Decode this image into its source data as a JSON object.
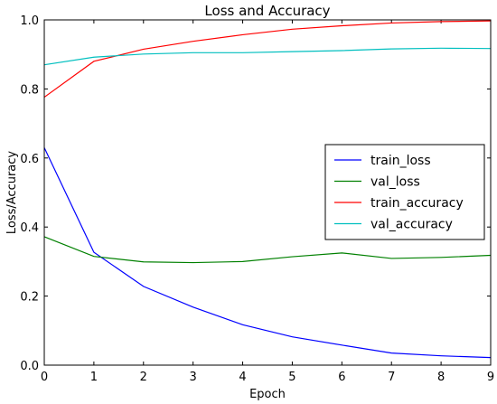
{
  "chart_data": {
    "type": "line",
    "title": "Loss and Accuracy",
    "xlabel": "Epoch",
    "ylabel": "Loss/Accuracy",
    "x": [
      0,
      1,
      2,
      3,
      4,
      5,
      6,
      7,
      8,
      9
    ],
    "xlim": [
      0,
      9
    ],
    "ylim": [
      0.0,
      1.0
    ],
    "xticks": [
      "0",
      "1",
      "2",
      "3",
      "4",
      "5",
      "6",
      "7",
      "8",
      "9"
    ],
    "yticks": [
      "0.0",
      "0.2",
      "0.4",
      "0.6",
      "0.8",
      "1.0"
    ],
    "grid": false,
    "legend_position": "center-right",
    "series": [
      {
        "name": "train_loss",
        "color": "#0000ff",
        "values": [
          0.63,
          0.327,
          0.228,
          0.168,
          0.117,
          0.082,
          0.058,
          0.035,
          0.027,
          0.022
        ]
      },
      {
        "name": "val_loss",
        "color": "#008000",
        "values": [
          0.372,
          0.315,
          0.299,
          0.297,
          0.3,
          0.314,
          0.325,
          0.309,
          0.312,
          0.318
        ]
      },
      {
        "name": "train_accuracy",
        "color": "#ff0000",
        "values": [
          0.776,
          0.88,
          0.915,
          0.938,
          0.957,
          0.973,
          0.983,
          0.991,
          0.995,
          0.997
        ]
      },
      {
        "name": "val_accuracy",
        "color": "#00bfbf",
        "values": [
          0.87,
          0.892,
          0.901,
          0.905,
          0.905,
          0.908,
          0.911,
          0.916,
          0.918,
          0.917
        ]
      }
    ]
  }
}
